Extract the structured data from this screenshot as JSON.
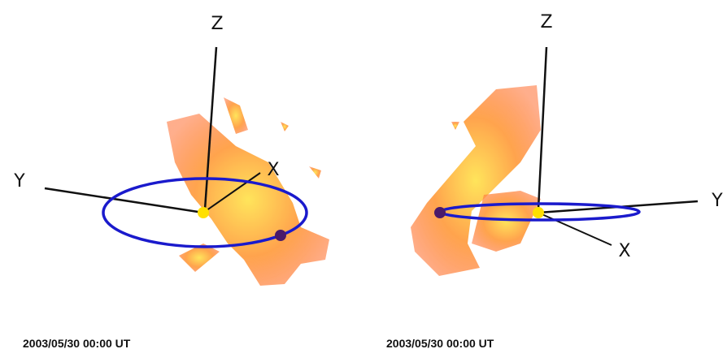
{
  "panels": [
    {
      "timestamp": "2003/05/30 00:00 UT",
      "axes": {
        "z": "Z",
        "x": "X",
        "y": "Y"
      }
    },
    {
      "timestamp": "2003/05/30 00:00 UT",
      "axes": {
        "z": "Z",
        "x": "X",
        "y": "Y"
      }
    }
  ]
}
